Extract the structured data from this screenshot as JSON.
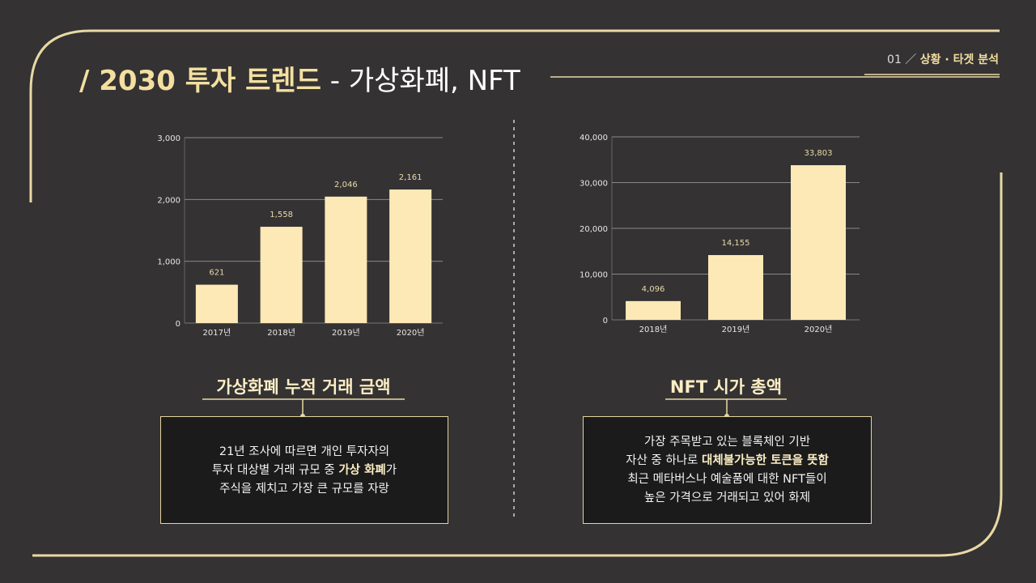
{
  "header": {
    "title_bold": "/ 2030 투자 트렌드",
    "title_sub": " - 가상화폐, NFT",
    "section_num": "01 ／ ",
    "section_label": "상황 · 타겟 분석"
  },
  "colors": {
    "accent": "#e8d9a4",
    "bar": "#fde9b6",
    "background": "#343233"
  },
  "chart_data": [
    {
      "type": "bar",
      "title": "가상화폐 누적 거래 금액",
      "categories": [
        "2017년",
        "2018년",
        "2019년",
        "2020년"
      ],
      "values": [
        621,
        1558,
        2046,
        2161
      ],
      "data_labels": [
        "621",
        "1,558",
        "2,046",
        "2,161"
      ],
      "yticks": [
        "0",
        "1,000",
        "2,000",
        "3,000"
      ],
      "ylim": [
        0,
        3000
      ],
      "grid": true
    },
    {
      "type": "bar",
      "title": "NFT 시가 총액",
      "categories": [
        "2018년",
        "2019년",
        "2020년"
      ],
      "values": [
        4096,
        14155,
        33803
      ],
      "data_labels": [
        "4,096",
        "14,155",
        "33,803"
      ],
      "yticks": [
        "0",
        "10,000",
        "20,000",
        "30,000",
        "40,000"
      ],
      "ylim": [
        0,
        40000
      ],
      "grid": true
    }
  ],
  "left_box": {
    "line1": "21년 조사에 따르면 개인 투자자의",
    "line2a": "투자 대상별 거래 규모 중 ",
    "line2b": "가상 화폐",
    "line2c": "가",
    "line3": "주식을 제치고 가장 큰 규모를 자랑"
  },
  "right_box": {
    "line1": "가장 주목받고 있는 블록체인 기반",
    "line2a": "자산 중 하나로 ",
    "line2b": "대체불가능한 토큰을 뜻함",
    "line3": "최근 메타버스나 예술품에 대한 NFT들이",
    "line4": "높은 가격으로 거래되고 있어 화제"
  }
}
